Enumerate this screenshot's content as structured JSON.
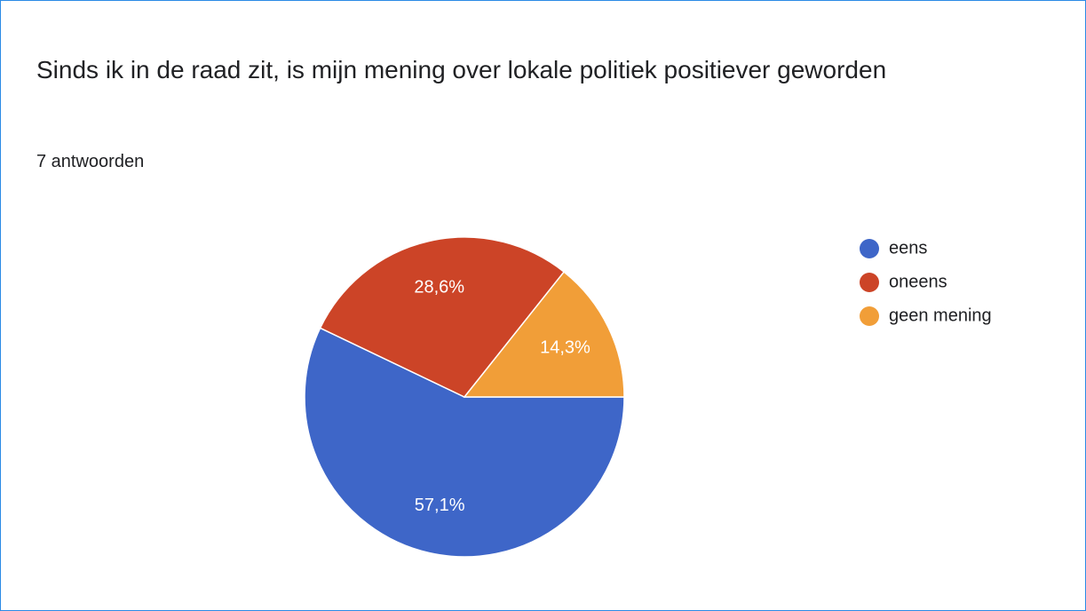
{
  "chart_data": {
    "type": "pie",
    "title": "Sinds ik in de raad zit, is mijn mening over lokale politiek positiever geworden",
    "subtitle": "7 antwoorden",
    "categories": [
      "eens",
      "oneens",
      "geen mening"
    ],
    "values": [
      57.1,
      28.6,
      14.3
    ],
    "value_labels": [
      "57,1%",
      "28,6%",
      "14,3%"
    ],
    "colors": [
      "#3e66c8",
      "#cc4427",
      "#f19e38"
    ],
    "legend": "right"
  }
}
